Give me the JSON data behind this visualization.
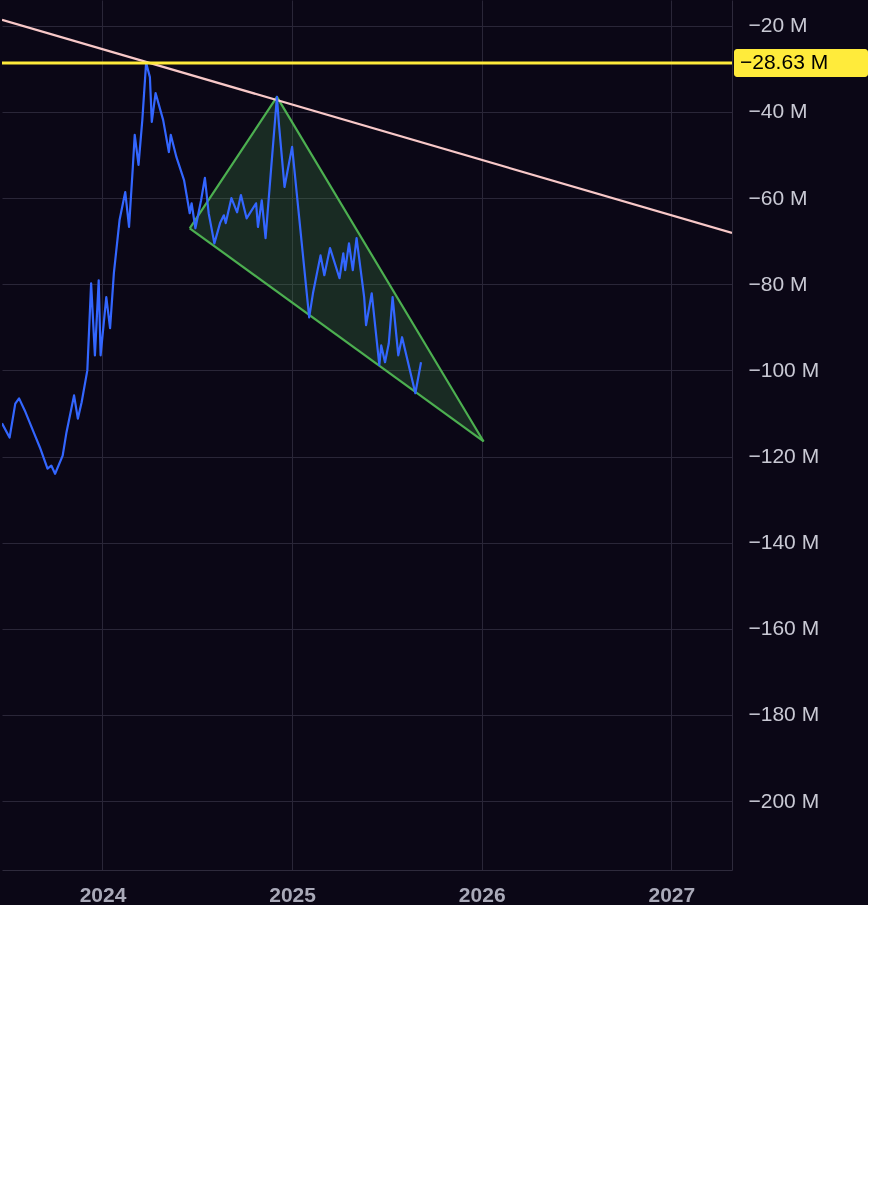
{
  "chart_data": {
    "type": "line",
    "xlim": [
      2023.47,
      2027.32
    ],
    "xticks": [
      2024,
      2025,
      2026,
      2027
    ],
    "ylim": [
      -216,
      -14
    ],
    "yticks": [
      {
        "value": -20,
        "label": "−20 M"
      },
      {
        "value": -40,
        "label": "−40 M"
      },
      {
        "value": -60,
        "label": "−60 M"
      },
      {
        "value": -80,
        "label": "−80 M"
      },
      {
        "value": -100,
        "label": "−100 M"
      },
      {
        "value": -120,
        "label": "−120 M"
      },
      {
        "value": -140,
        "label": "−140 M"
      },
      {
        "value": -160,
        "label": "−160 M"
      },
      {
        "value": -180,
        "label": "−180 M"
      },
      {
        "value": -200,
        "label": "−200 M"
      }
    ],
    "grid": true,
    "series": [
      {
        "type": "line",
        "color": "#4caf50",
        "x": [
          2024.46,
          2024.92,
          2026.01
        ],
        "values": [
          -67.0,
          -36.5,
          -116.5
        ],
        "lower": [
          -67.0,
          -81.7,
          -116.5
        ],
        "upper": [
          -67.0,
          -36.5,
          -116.5
        ]
      },
      {
        "type": "line",
        "color": "#4caf50",
        "x": [
          2024.46,
          2026.01
        ],
        "values": [
          -67.0,
          -116.5
        ]
      },
      {
        "type": "line",
        "color": "#f8c8c8",
        "x": [
          2023.47,
          2027.32
        ],
        "values": [
          -18.6,
          -68.1
        ]
      },
      {
        "color": "#3366ff",
        "x": [
          2023.47,
          2023.51,
          2023.54,
          2023.56,
          2023.59,
          2023.64,
          2023.67,
          2023.71,
          2023.73,
          2023.75,
          2023.79,
          2023.81,
          2023.85,
          2023.87,
          2023.89,
          2023.92,
          2023.94,
          2023.96,
          2023.98,
          2023.99,
          2024.02,
          2024.04,
          2024.06,
          2024.09,
          2024.12,
          2024.14,
          2024.16,
          2024.17,
          2024.19,
          2024.21,
          2024.23,
          2024.25,
          2024.26,
          2024.28,
          2024.32,
          2024.35,
          2024.36,
          2024.39,
          2024.43,
          2024.46,
          2024.47,
          2024.49,
          2024.52,
          2024.54,
          2024.56,
          2024.59,
          2024.62,
          2024.64,
          2024.65,
          2024.68,
          2024.71,
          2024.73,
          2024.76,
          2024.81,
          2024.82,
          2024.84,
          2024.86,
          2024.89,
          2024.92,
          2024.93,
          2024.96,
          2025.0,
          2025.09,
          2025.11,
          2025.15,
          2025.17,
          2025.2,
          2025.25,
          2025.27,
          2025.28,
          2025.3,
          2025.32,
          2025.34,
          2025.38,
          2025.39,
          2025.42,
          2025.46,
          2025.47,
          2025.49,
          2025.51,
          2025.53,
          2025.56,
          2025.58,
          2025.65,
          2025.68
        ],
        "values": [
          -112.3,
          -115.6,
          -107.7,
          -106.5,
          -109.3,
          -114.7,
          -117.9,
          -122.8,
          -122.1,
          -124.0,
          -119.8,
          -114.4,
          -105.8,
          -111.2,
          -107.4,
          -100.0,
          -79.8,
          -96.5,
          -79.1,
          -96.5,
          -83.0,
          -90.2,
          -77.4,
          -65.1,
          -58.6,
          -66.7,
          -52.8,
          -45.3,
          -52.3,
          -41.9,
          -28.6,
          -31.9,
          -42.3,
          -35.6,
          -41.9,
          -49.3,
          -45.3,
          -50.5,
          -55.8,
          -63.5,
          -61.2,
          -67.0,
          -60.5,
          -55.3,
          -63.5,
          -70.5,
          -65.8,
          -64.0,
          -65.8,
          -60.0,
          -63.3,
          -59.3,
          -64.7,
          -61.2,
          -66.7,
          -60.5,
          -69.3,
          -52.8,
          -36.5,
          -42.6,
          -57.4,
          -48.1,
          -87.7,
          -82.1,
          -73.3,
          -77.9,
          -71.6,
          -78.6,
          -72.8,
          -76.7,
          -70.5,
          -76.7,
          -69.3,
          -83.0,
          -89.5,
          -82.1,
          -98.8,
          -94.2,
          -98.1,
          -93.7,
          -83.0,
          -96.5,
          -92.3,
          -105.3,
          -98.1
        ]
      }
    ],
    "ref_lines": [
      {
        "axis": "y",
        "value": -28.63,
        "label": "−28.63 M",
        "color": "#ffeb3b"
      }
    ]
  }
}
